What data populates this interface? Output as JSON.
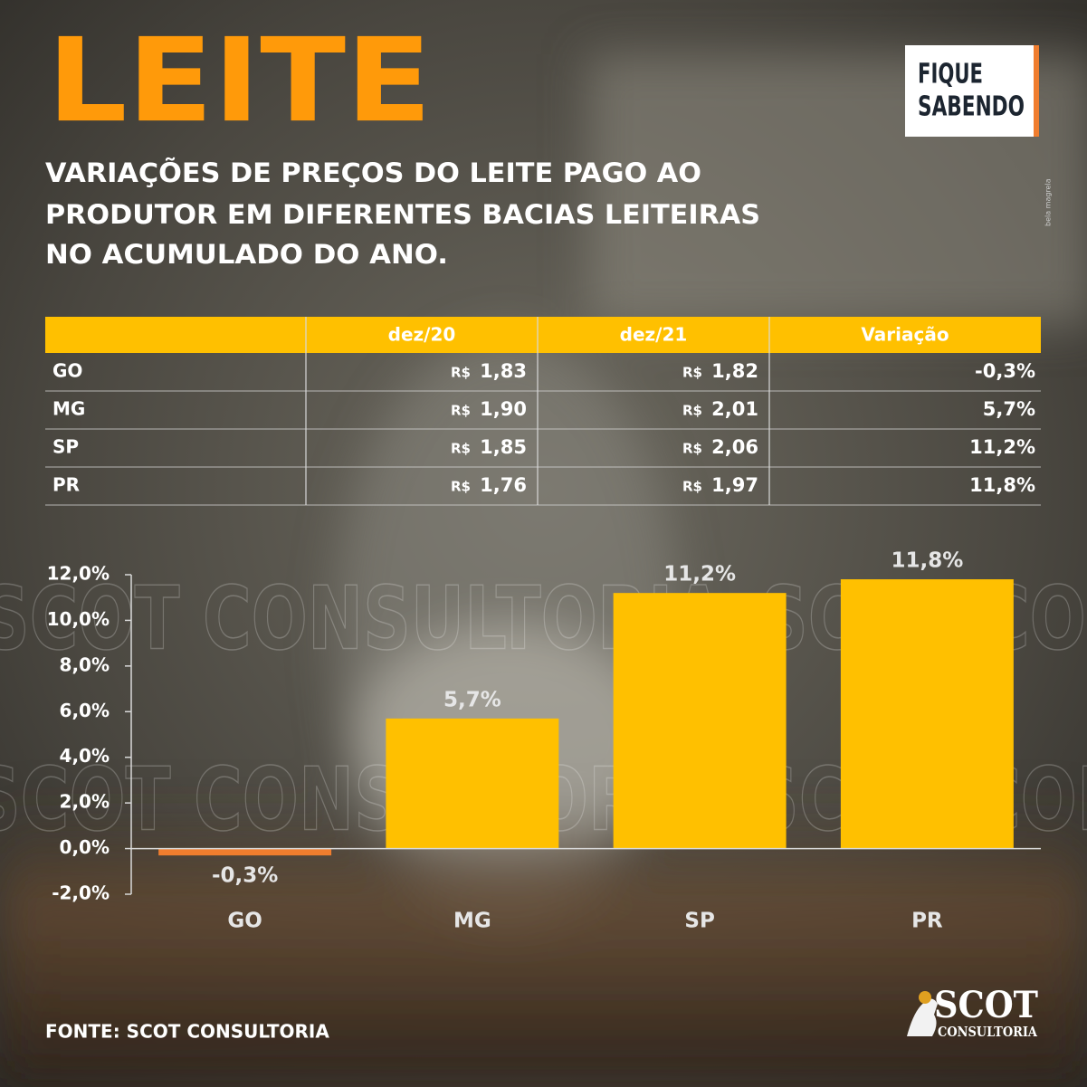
{
  "header": {
    "title": "LEITE",
    "badge": [
      "FIQUE",
      "SABENDO"
    ],
    "subtitle": [
      "VARIAÇÕES DE PREÇOS DO LEITE PAGO AO",
      "PRODUTOR EM DIFERENTES BACIAS LEITEIRAS",
      "NO ACUMULADO DO ANO."
    ],
    "credit": "bela magrela"
  },
  "table": {
    "columns": [
      "dez/20",
      "dez/21",
      "Variação"
    ],
    "currency": "R$",
    "rows": [
      [
        "GO",
        "1,83",
        "1,82",
        "-0,3%"
      ],
      [
        "MG",
        "1,90",
        "2,01",
        "5,7%"
      ],
      [
        "SP",
        "1,85",
        "2,06",
        "11,2%"
      ],
      [
        "PR",
        "1,76",
        "1,97",
        "11,8%"
      ]
    ]
  },
  "chart_data": {
    "type": "bar",
    "categories": [
      "GO",
      "MG",
      "SP",
      "PR"
    ],
    "values": [
      -0.3,
      5.7,
      11.2,
      11.8
    ],
    "value_labels": [
      "-0,3%",
      "5,7%",
      "11,2%",
      "11,8%"
    ],
    "color": "#FFC000",
    "negative_color": "#F07D2E",
    "ylim": [
      -2,
      12
    ],
    "yticks": [
      {
        "value": -2,
        "label": "-2,0%"
      },
      {
        "value": 0,
        "label": "0,0%"
      },
      {
        "value": 2,
        "label": "2,0%"
      },
      {
        "value": 4,
        "label": "4,0%"
      },
      {
        "value": 6,
        "label": "6,0%"
      },
      {
        "value": 8,
        "label": "8,0%"
      },
      {
        "value": 10,
        "label": "10,0%"
      },
      {
        "value": 12,
        "label": "12,0%"
      }
    ],
    "watermark": "SCOT CONSULTORIA"
  },
  "footer": {
    "source": "FONTE: SCOT CONSULTORIA",
    "logo": [
      "SCOT",
      "CONSULTORIA"
    ]
  }
}
